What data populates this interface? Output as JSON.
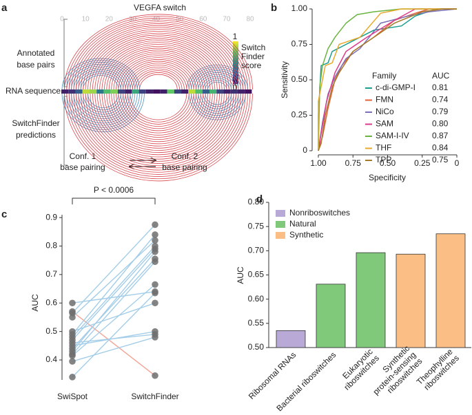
{
  "chart_data": [
    {
      "type": "arc",
      "panel_label": "a",
      "title": "VEGFA switch",
      "xlim": [
        0,
        80
      ],
      "xticks": [
        0,
        10,
        20,
        30,
        40,
        50,
        60,
        70,
        80
      ],
      "row_labels": {
        "annotated": [
          "Annotated",
          "base pairs"
        ],
        "sequence": "RNA sequence",
        "predicted": [
          "SwitchFinder",
          "predictions"
        ]
      },
      "colorbar": {
        "label": [
          "Switch",
          "Finder",
          "score"
        ],
        "lim": [
          0,
          1
        ],
        "ticks": [
          0,
          1
        ]
      },
      "scores": [
        0.1,
        0.15,
        0.3,
        0.9,
        0.85,
        0.4,
        0.7,
        0.8,
        0.2,
        0.1,
        0.6,
        0.2,
        0.1,
        0.05,
        0.1,
        0.75,
        0.2,
        0.1,
        0.9,
        0.7,
        0.3,
        0.65,
        0.2,
        0.1,
        0.15,
        0.1,
        0.05
      ],
      "series": [
        {
          "name": [
            "Conf. 1",
            "base pairing"
          ],
          "color": "#4a8fc4",
          "helices": [
            {
              "side": "annotated",
              "start": 0,
              "end": 33,
              "count": 10
            },
            {
              "side": "annotated",
              "start": 53,
              "end": 79,
              "count": 10
            },
            {
              "side": "predicted",
              "start": 0,
              "end": 35,
              "count": 12
            },
            {
              "side": "predicted",
              "start": 54,
              "end": 78,
              "count": 8
            }
          ]
        },
        {
          "name": [
            "Conf. 2",
            "base pairing"
          ],
          "color": "#d8454d",
          "helices": [
            {
              "side": "annotated",
              "start": 1,
              "end": 81,
              "count": 33
            },
            {
              "side": "predicted",
              "start": 1,
              "end": 81,
              "count": 29
            }
          ]
        }
      ]
    },
    {
      "type": "line",
      "panel_label": "b",
      "x_label": "Specificity",
      "y_label": "Sensitivity",
      "xlim": [
        1,
        0
      ],
      "ylim": [
        0,
        1
      ],
      "xticks": [
        {
          "value": 1,
          "label": "1.00"
        },
        0.75,
        {
          "value": 0.5,
          "label": "0.50"
        },
        0.25,
        0
      ],
      "yticks": [
        0,
        0.25,
        {
          "value": 0.5,
          "label": "0.50"
        },
        0.75,
        {
          "value": 1,
          "label": "1.00"
        }
      ],
      "legend_title": "Family",
      "auc_title": "AUC",
      "series": [
        {
          "name": "c-di-GMP-I",
          "auc": "0.81",
          "color": "#1a9e8f",
          "x": [
            1,
            1,
            0.98,
            0.93,
            0.9,
            0.8,
            0.7,
            0.6,
            0.4,
            0.3,
            0.15,
            0
          ],
          "values": [
            0,
            0.25,
            0.6,
            0.62,
            0.7,
            0.75,
            0.8,
            0.85,
            0.88,
            0.95,
            1,
            1
          ]
        },
        {
          "name": "FMN",
          "auc": "0.74",
          "color": "#e2603a",
          "x": [
            1,
            0.97,
            0.93,
            0.88,
            0.83,
            0.75,
            0.6,
            0.45,
            0.3,
            0.2,
            0
          ],
          "values": [
            0,
            0.1,
            0.3,
            0.5,
            0.6,
            0.7,
            0.8,
            0.92,
            0.97,
            1,
            1
          ]
        },
        {
          "name": "NiCo",
          "auc": "0.79",
          "color": "#7b6fb8",
          "x": [
            1,
            0.97,
            0.93,
            0.88,
            0.8,
            0.7,
            0.55,
            0.35,
            0.2,
            0
          ],
          "values": [
            0,
            0.2,
            0.4,
            0.52,
            0.65,
            0.72,
            0.9,
            0.95,
            0.98,
            1
          ]
        },
        {
          "name": "SAM",
          "auc": "0.80",
          "color": "#dd3b8a",
          "x": [
            1,
            0.98,
            0.94,
            0.88,
            0.8,
            0.65,
            0.45,
            0.3,
            0
          ],
          "values": [
            0,
            0.12,
            0.35,
            0.55,
            0.7,
            0.8,
            0.92,
            1,
            1
          ]
        },
        {
          "name": "SAM-I-IV",
          "auc": "0.87",
          "color": "#6ab33f",
          "x": [
            1,
            0.99,
            0.97,
            0.93,
            0.88,
            0.8,
            0.72,
            0.6,
            0.4,
            0
          ],
          "values": [
            0,
            0.45,
            0.6,
            0.72,
            0.8,
            0.9,
            0.96,
            0.98,
            1,
            1
          ]
        },
        {
          "name": "THF",
          "auc": "0.84",
          "color": "#e8a92a",
          "x": [
            1,
            1,
            0.97,
            0.95,
            0.9,
            0.85,
            0.7,
            0.55,
            0.4,
            0
          ],
          "values": [
            0,
            0.35,
            0.5,
            0.6,
            0.62,
            0.75,
            0.8,
            0.97,
            1,
            1
          ]
        },
        {
          "name": "TPP",
          "auc": "0.75",
          "color": "#a57a2a",
          "x": [
            1,
            0.98,
            0.95,
            0.9,
            0.85,
            0.75,
            0.6,
            0.45,
            0.25,
            0.1,
            0
          ],
          "values": [
            0,
            0.05,
            0.25,
            0.45,
            0.55,
            0.7,
            0.8,
            0.9,
            0.98,
            1,
            1
          ]
        }
      ]
    },
    {
      "type": "paired",
      "panel_label": "c",
      "y_label": "AUC",
      "annotation": "P < 0.0006",
      "categories": [
        "SwiSpot",
        "SwitchFinder"
      ],
      "ylim": [
        0.33,
        0.91
      ],
      "yticks": [
        0.4,
        0.5,
        0.6,
        0.7,
        0.8,
        0.9
      ],
      "point_color": "#6e6e6e",
      "series": [
        {
          "color": "#a3cde8",
          "values": [
            0.6,
            0.64
          ]
        },
        {
          "color": "#f2a394",
          "values": [
            0.57,
            0.345
          ]
        },
        {
          "color": "#a3cde8",
          "values": [
            0.565,
            0.875
          ]
        },
        {
          "color": "#a3cde8",
          "values": [
            0.55,
            0.82
          ]
        },
        {
          "color": "#a3cde8",
          "values": [
            0.5,
            0.6
          ]
        },
        {
          "color": "#a3cde8",
          "values": [
            0.49,
            0.84
          ]
        },
        {
          "color": "#a3cde8",
          "values": [
            0.48,
            0.8
          ]
        },
        {
          "color": "#a3cde8",
          "values": [
            0.47,
            0.79
          ]
        },
        {
          "color": "#a3cde8",
          "values": [
            0.45,
            0.5
          ]
        },
        {
          "color": "#a3cde8",
          "values": [
            0.44,
            0.755
          ]
        },
        {
          "color": "#a3cde8",
          "values": [
            0.43,
            0.78
          ]
        },
        {
          "color": "#a3cde8",
          "values": [
            0.42,
            0.745
          ]
        },
        {
          "color": "#a3cde8",
          "values": [
            0.415,
            0.665
          ]
        },
        {
          "color": "#a3cde8",
          "values": [
            0.395,
            0.48
          ]
        },
        {
          "color": "#a3cde8",
          "values": [
            0.34,
            0.635
          ]
        },
        {
          "color": "#a3cde8",
          "values": [
            0.46,
            0.49
          ]
        }
      ]
    },
    {
      "type": "bar",
      "panel_label": "d",
      "y_label": "AUC",
      "categories": [
        [
          "Ribosomal RNAs"
        ],
        [
          "Bacterial riboswitches"
        ],
        [
          "Eukaryotic",
          "riboswitches"
        ],
        [
          "Synthetic",
          "protein-sensing",
          "riboswitches"
        ],
        [
          "Theophylline",
          "riboswitches"
        ]
      ],
      "ylim": [
        0.5,
        0.8
      ],
      "yticks": [
        {
          "value": 0.5,
          "label": "0.50"
        },
        0.55,
        {
          "value": 0.6,
          "label": "0.60"
        },
        0.65,
        {
          "value": 0.7,
          "label": "0.70"
        },
        0.75,
        {
          "value": 0.8,
          "label": "0.80"
        }
      ],
      "series": [
        {
          "name": "Nonriboswitches",
          "color": "#b9a9d6",
          "values": [
            0.535,
            null,
            null,
            null,
            null
          ]
        },
        {
          "name": "Natural",
          "color": "#80c97a",
          "values": [
            null,
            0.631,
            0.696,
            null,
            null
          ]
        },
        {
          "name": "Synthetic",
          "color": "#fbbf85",
          "values": [
            null,
            null,
            null,
            0.693,
            0.735
          ]
        }
      ]
    }
  ]
}
